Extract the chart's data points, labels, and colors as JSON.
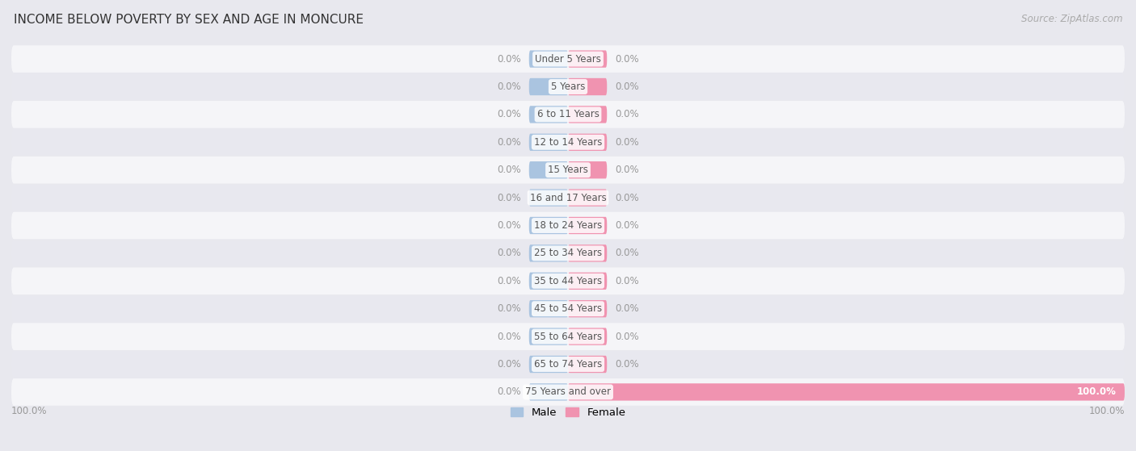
{
  "title": "INCOME BELOW POVERTY BY SEX AND AGE IN MONCURE",
  "source": "Source: ZipAtlas.com",
  "categories": [
    "Under 5 Years",
    "5 Years",
    "6 to 11 Years",
    "12 to 14 Years",
    "15 Years",
    "16 and 17 Years",
    "18 to 24 Years",
    "25 to 34 Years",
    "35 to 44 Years",
    "45 to 54 Years",
    "55 to 64 Years",
    "65 to 74 Years",
    "75 Years and over"
  ],
  "male_values": [
    0.0,
    0.0,
    0.0,
    0.0,
    0.0,
    0.0,
    0.0,
    0.0,
    0.0,
    0.0,
    0.0,
    0.0,
    0.0
  ],
  "female_values": [
    0.0,
    0.0,
    0.0,
    0.0,
    0.0,
    0.0,
    0.0,
    0.0,
    0.0,
    0.0,
    0.0,
    0.0,
    100.0
  ],
  "male_color": "#aac4e0",
  "female_color": "#f093b0",
  "male_label": "Male",
  "female_label": "Female",
  "bg_color": "#e8e8ee",
  "row_light": "#f5f5f8",
  "row_dark": "#e8e8ef",
  "xlim": 100,
  "bar_height": 0.62,
  "min_bar_display": 7.0,
  "title_fontsize": 11,
  "label_fontsize": 8.5,
  "value_fontsize": 8.5,
  "source_fontsize": 8.5,
  "value_label_color": "#999999",
  "category_label_color": "#555555",
  "bottom_label_color": "#999999"
}
